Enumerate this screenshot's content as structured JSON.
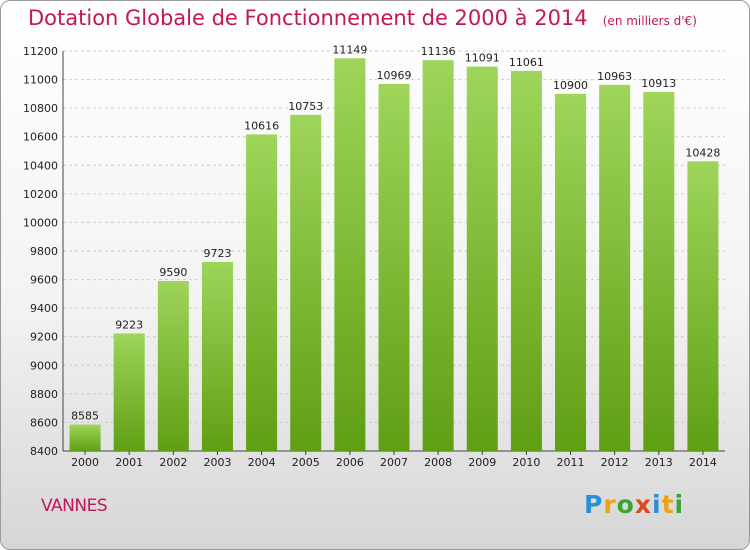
{
  "title": "Dotation Globale de Fonctionnement de 2000 à 2014",
  "unit": "(en milliers d'€)",
  "town": "VANNES",
  "logo": [
    "P",
    "r",
    "o",
    "x",
    "i",
    "t",
    "i"
  ],
  "logo_colors": [
    "#2b8fd8",
    "#e8a317",
    "#3aa535",
    "#d94b1f",
    "#2b8fd8",
    "#e8a317",
    "#3aa535"
  ],
  "colors": {
    "bar_top": "#9ed55a",
    "bar_bottom": "#5f9f14",
    "title": "#c2175b",
    "grid": "#cccccc"
  },
  "chart_data": {
    "type": "bar",
    "categories": [
      "2000",
      "2001",
      "2002",
      "2003",
      "2004",
      "2005",
      "2006",
      "2007",
      "2008",
      "2009",
      "2010",
      "2011",
      "2012",
      "2013",
      "2014"
    ],
    "values": [
      8585,
      9223,
      9590,
      9723,
      10616,
      10753,
      11149,
      10969,
      11136,
      11091,
      11061,
      10900,
      10963,
      10913,
      10428
    ],
    "value_labels": [
      "8585",
      "9223",
      "9590",
      "9723",
      "10616",
      "10753",
      "11149",
      "10969",
      "11136",
      "11091",
      "11061",
      "10900",
      "10963",
      "10913",
      "10428"
    ],
    "ylim": [
      8400,
      11200
    ],
    "yticks": [
      8400,
      8600,
      8800,
      9000,
      9200,
      9400,
      9600,
      9800,
      10000,
      10200,
      10400,
      10600,
      10800,
      11000,
      11200
    ],
    "grid": true
  }
}
